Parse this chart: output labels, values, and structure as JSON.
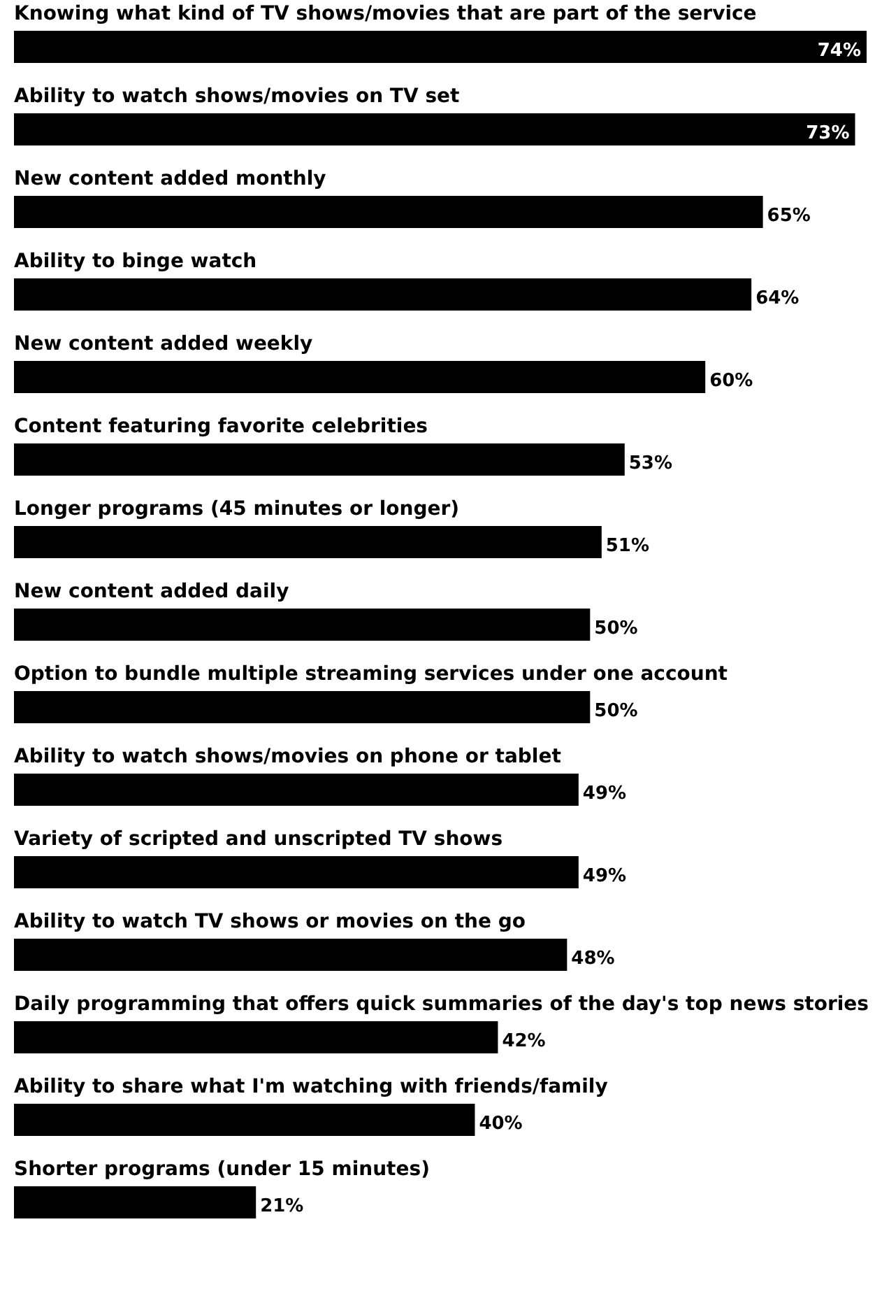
{
  "chart_data": {
    "type": "bar",
    "orientation": "horizontal",
    "data_labels": true,
    "color": "#000000",
    "categories": [
      "Knowing what kind of TV shows/movies that are part of the service",
      "Ability to watch shows/movies on TV set",
      "New content added monthly",
      "Ability to binge watch",
      "New content added weekly",
      "Content featuring favorite celebrities",
      "Longer programs (45 minutes or longer)",
      "New content added daily",
      "Option to bundle multiple streaming services under one account",
      "Ability to watch shows/movies on phone or tablet",
      "Variety of scripted and unscripted TV shows",
      "Ability to watch TV shows or movies on the go",
      "Daily programming that offers quick summaries of the day's top news stories",
      "Ability to share what I'm watching with friends/family",
      "Shorter programs (under 15 minutes)"
    ],
    "values": [
      74,
      73,
      65,
      64,
      60,
      53,
      51,
      50,
      50,
      49,
      49,
      48,
      42,
      40,
      21
    ],
    "value_labels": [
      "74%",
      "73%",
      "65%",
      "64%",
      "60%",
      "53%",
      "51%",
      "50%",
      "50%",
      "49%",
      "49%",
      "48%",
      "42%",
      "40%",
      "21%"
    ]
  }
}
